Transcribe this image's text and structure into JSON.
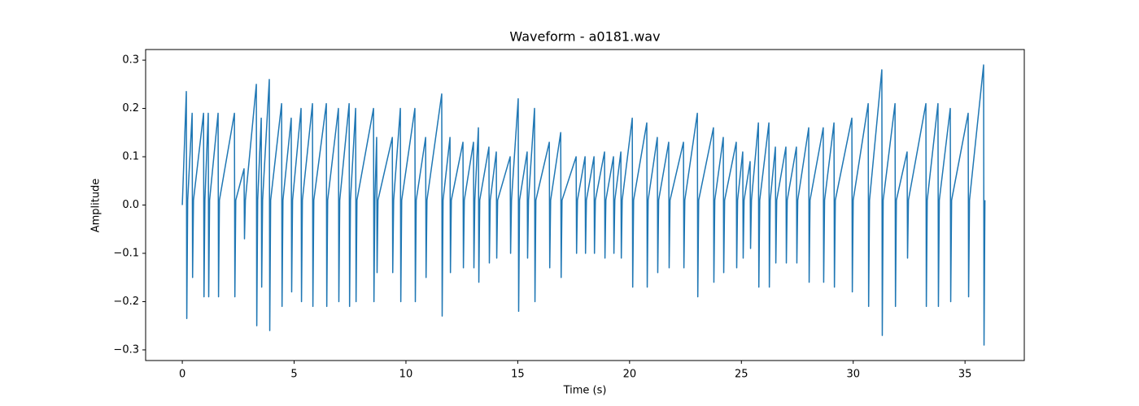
{
  "chart_data": {
    "type": "line",
    "title": "Waveform - a0181.wav",
    "x_label": "Time (s)",
    "y_label": "Amplitude",
    "color": "#1f77b4",
    "xlim": [
      -1.64,
      37.65
    ],
    "ylim": [
      -0.322,
      0.322
    ],
    "xticks": [
      0,
      5,
      10,
      15,
      20,
      25,
      30,
      35
    ],
    "yticks": [
      {
        "value": -0.3,
        "label": "−0.3"
      },
      {
        "value": -0.2,
        "label": "−0.2"
      },
      {
        "value": -0.1,
        "label": "−0.1"
      },
      {
        "value": 0,
        "label": "0.0"
      },
      0.1,
      0.2,
      0.3
    ],
    "grid": false,
    "x": [
      0,
      0.18,
      0.2,
      0.24,
      0.44,
      0.46,
      0.5,
      0.95,
      0.97,
      1.01,
      1.16,
      1.18,
      1.22,
      1.6,
      1.62,
      1.66,
      2.33,
      2.35,
      2.39,
      2.76,
      2.78,
      2.82,
      3.31,
      3.33,
      3.37,
      3.53,
      3.55,
      3.59,
      3.89,
      3.91,
      3.95,
      4.44,
      4.46,
      4.5,
      4.87,
      4.89,
      4.93,
      5.31,
      5.33,
      5.37,
      5.82,
      5.84,
      5.88,
      6.44,
      6.46,
      6.5,
      6.98,
      7,
      7.04,
      7.46,
      7.48,
      7.52,
      7.75,
      7.77,
      7.81,
      8.55,
      8.57,
      8.61,
      8.69,
      8.71,
      8.75,
      9.39,
      9.41,
      9.45,
      9.75,
      9.77,
      9.81,
      10.4,
      10.42,
      10.46,
      10.88,
      10.9,
      10.94,
      11.6,
      11.62,
      11.66,
      11.97,
      11.99,
      12.03,
      12.55,
      12.57,
      12.61,
      13.02,
      13.04,
      13.08,
      13.24,
      13.26,
      13.3,
      13.71,
      13.73,
      13.77,
      14.04,
      14.06,
      14.1,
      14.66,
      14.68,
      14.72,
      15.02,
      15.04,
      15.08,
      15.42,
      15.44,
      15.48,
      15.75,
      15.77,
      15.81,
      16.41,
      16.43,
      16.47,
      16.92,
      16.94,
      16.98,
      17.61,
      17.63,
      17.67,
      18.01,
      18.03,
      18.07,
      18.41,
      18.43,
      18.47,
      18.88,
      18.9,
      18.94,
      19.28,
      19.3,
      19.34,
      19.61,
      19.63,
      19.67,
      20.12,
      20.14,
      20.18,
      20.77,
      20.79,
      20.83,
      21.24,
      21.26,
      21.3,
      21.75,
      21.77,
      21.81,
      22.41,
      22.43,
      22.47,
      23.03,
      23.05,
      23.09,
      23.75,
      23.77,
      23.81,
      24.19,
      24.21,
      24.25,
      24.77,
      24.79,
      24.83,
      25.06,
      25.08,
      25.12,
      25.39,
      25.41,
      25.45,
      25.76,
      25.78,
      25.82,
      26.23,
      26.25,
      26.29,
      26.52,
      26.54,
      26.58,
      26.99,
      27.01,
      27.05,
      27.46,
      27.48,
      27.52,
      28.01,
      28.03,
      28.07,
      28.66,
      28.68,
      28.72,
      29.14,
      29.16,
      29.2,
      29.94,
      29.96,
      30,
      30.67,
      30.69,
      30.73,
      31.28,
      31.3,
      31.34,
      31.87,
      31.89,
      31.93,
      32.41,
      32.43,
      32.47,
      33.25,
      33.27,
      33.31,
      33.79,
      33.81,
      33.85,
      34.34,
      34.36,
      34.4,
      35.14,
      35.16,
      35.2,
      35.83,
      35.85,
      35.89
    ],
    "values": [
      0,
      0.235,
      -0.235,
      0.01,
      0.19,
      -0.15,
      0.01,
      0.19,
      -0.19,
      0.01,
      0.19,
      -0.19,
      0.01,
      0.19,
      -0.19,
      0.01,
      0.19,
      -0.19,
      0.01,
      0.075,
      -0.07,
      0.01,
      0.25,
      -0.25,
      0.01,
      0.18,
      -0.17,
      0.01,
      0.26,
      -0.26,
      0.01,
      0.21,
      -0.21,
      0.01,
      0.18,
      -0.18,
      0.01,
      0.2,
      -0.2,
      0.01,
      0.21,
      -0.21,
      0.01,
      0.21,
      -0.21,
      0.01,
      0.2,
      -0.2,
      0.01,
      0.21,
      -0.21,
      0.01,
      0.2,
      -0.2,
      0.01,
      0.2,
      -0.2,
      0.01,
      0.14,
      -0.14,
      0.01,
      0.14,
      -0.14,
      0.01,
      0.2,
      -0.2,
      0.01,
      0.2,
      -0.2,
      0.01,
      0.14,
      -0.15,
      0.01,
      0.23,
      -0.23,
      0.01,
      0.14,
      -0.14,
      0.01,
      0.13,
      -0.13,
      0.01,
      0.13,
      -0.13,
      0.01,
      0.16,
      -0.16,
      0.01,
      0.12,
      -0.12,
      0.01,
      0.11,
      -0.11,
      0.01,
      0.1,
      -0.1,
      0.01,
      0.22,
      -0.22,
      0.01,
      0.11,
      -0.11,
      0.01,
      0.2,
      -0.2,
      0.01,
      0.13,
      -0.13,
      0.01,
      0.15,
      -0.15,
      0.01,
      0.1,
      -0.1,
      0.01,
      0.1,
      -0.1,
      0.01,
      0.1,
      -0.1,
      0.01,
      0.11,
      -0.11,
      0.01,
      0.1,
      -0.1,
      0.01,
      0.11,
      -0.11,
      0.01,
      0.18,
      -0.17,
      0.01,
      0.17,
      -0.17,
      0.01,
      0.14,
      -0.14,
      0.01,
      0.13,
      -0.13,
      0.01,
      0.13,
      -0.13,
      0.01,
      0.19,
      -0.19,
      0.01,
      0.16,
      -0.16,
      0.01,
      0.14,
      -0.14,
      0.01,
      0.13,
      -0.13,
      0.01,
      0.11,
      -0.11,
      0.01,
      0.09,
      -0.09,
      0.01,
      0.17,
      -0.17,
      0.01,
      0.17,
      -0.17,
      0.01,
      0.12,
      -0.12,
      0.01,
      0.12,
      -0.12,
      0.01,
      0.12,
      -0.12,
      0.01,
      0.16,
      -0.16,
      0.01,
      0.16,
      -0.16,
      0.01,
      0.17,
      -0.17,
      0.01,
      0.18,
      -0.18,
      0.01,
      0.21,
      -0.21,
      0.01,
      0.28,
      -0.27,
      0.01,
      0.21,
      -0.21,
      0.01,
      0.11,
      -0.11,
      0.01,
      0.21,
      -0.21,
      0.01,
      0.21,
      -0.21,
      0.01,
      0.2,
      -0.2,
      0.01,
      0.19,
      -0.19,
      0.01,
      0.29,
      -0.29,
      0.01
    ]
  }
}
